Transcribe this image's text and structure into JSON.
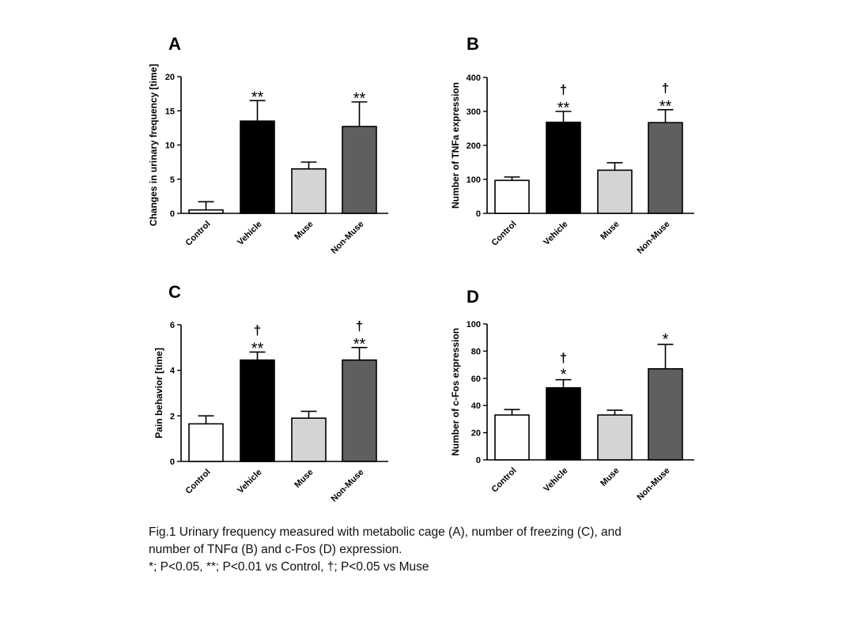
{
  "chart_data": [
    {
      "panel": "A",
      "type": "bar",
      "categories": [
        "Control",
        "Vehicle",
        "Muse",
        "Non-Muse"
      ],
      "values": [
        0.5,
        13.5,
        6.5,
        12.7
      ],
      "errors": [
        1.2,
        3.0,
        1.0,
        3.6
      ],
      "significance": [
        "",
        "**",
        "",
        "**"
      ],
      "dagger": [
        "",
        "",
        "",
        ""
      ],
      "ylabel": "Changes in urinary frequency [time]",
      "xlabel": "",
      "ylim": [
        0,
        20
      ],
      "yticks": [
        0,
        5,
        10,
        15,
        20
      ],
      "bar_colors": [
        "#ffffff",
        "#000000",
        "#d4d4d4",
        "#5f5f5f"
      ]
    },
    {
      "panel": "B",
      "type": "bar",
      "categories": [
        "Control",
        "Vehicle",
        "Muse",
        "Non-Muse"
      ],
      "values": [
        97,
        268,
        127,
        267
      ],
      "errors": [
        10,
        32,
        22,
        38
      ],
      "significance": [
        "",
        "**",
        "",
        "**"
      ],
      "dagger": [
        "",
        "†",
        "",
        "†"
      ],
      "ylabel": "Number of TNFa expression",
      "xlabel": "",
      "ylim": [
        0,
        400
      ],
      "yticks": [
        0,
        100,
        200,
        300,
        400
      ],
      "bar_colors": [
        "#ffffff",
        "#000000",
        "#d4d4d4",
        "#5f5f5f"
      ]
    },
    {
      "panel": "C",
      "type": "bar",
      "categories": [
        "Control",
        "Vehicle",
        "Muse",
        "Non-Muse"
      ],
      "values": [
        1.65,
        4.45,
        1.9,
        4.45
      ],
      "errors": [
        0.35,
        0.35,
        0.3,
        0.55
      ],
      "significance": [
        "",
        "**",
        "",
        "**"
      ],
      "dagger": [
        "",
        "†",
        "",
        "†"
      ],
      "ylabel": "Pain behavior [time]",
      "xlabel": "",
      "ylim": [
        0,
        6
      ],
      "yticks": [
        0,
        2,
        4,
        6
      ],
      "bar_colors": [
        "#ffffff",
        "#000000",
        "#d4d4d4",
        "#5f5f5f"
      ]
    },
    {
      "panel": "D",
      "type": "bar",
      "categories": [
        "Control",
        "Vehicle",
        "Muse",
        "Non-Muse"
      ],
      "values": [
        33,
        53,
        33,
        67
      ],
      "errors": [
        4,
        6,
        3.5,
        18
      ],
      "significance": [
        "",
        "*",
        "",
        "*"
      ],
      "dagger": [
        "",
        "†",
        "",
        ""
      ],
      "ylabel": "Number of c-Fos expression",
      "xlabel": "",
      "ylim": [
        0,
        100
      ],
      "yticks": [
        0,
        20,
        40,
        60,
        80,
        100
      ],
      "bar_colors": [
        "#ffffff",
        "#000000",
        "#d4d4d4",
        "#5f5f5f"
      ]
    }
  ],
  "caption": {
    "line1": "Fig.1   Urinary frequency measured with metabolic cage (A), number of freezing (C), and",
    "line2": "number of TNFα (B) and c-Fos (D) expression.",
    "line3": "*; P<0.05, **; P<0.01 vs Control, †; P<0.05 vs Muse"
  }
}
